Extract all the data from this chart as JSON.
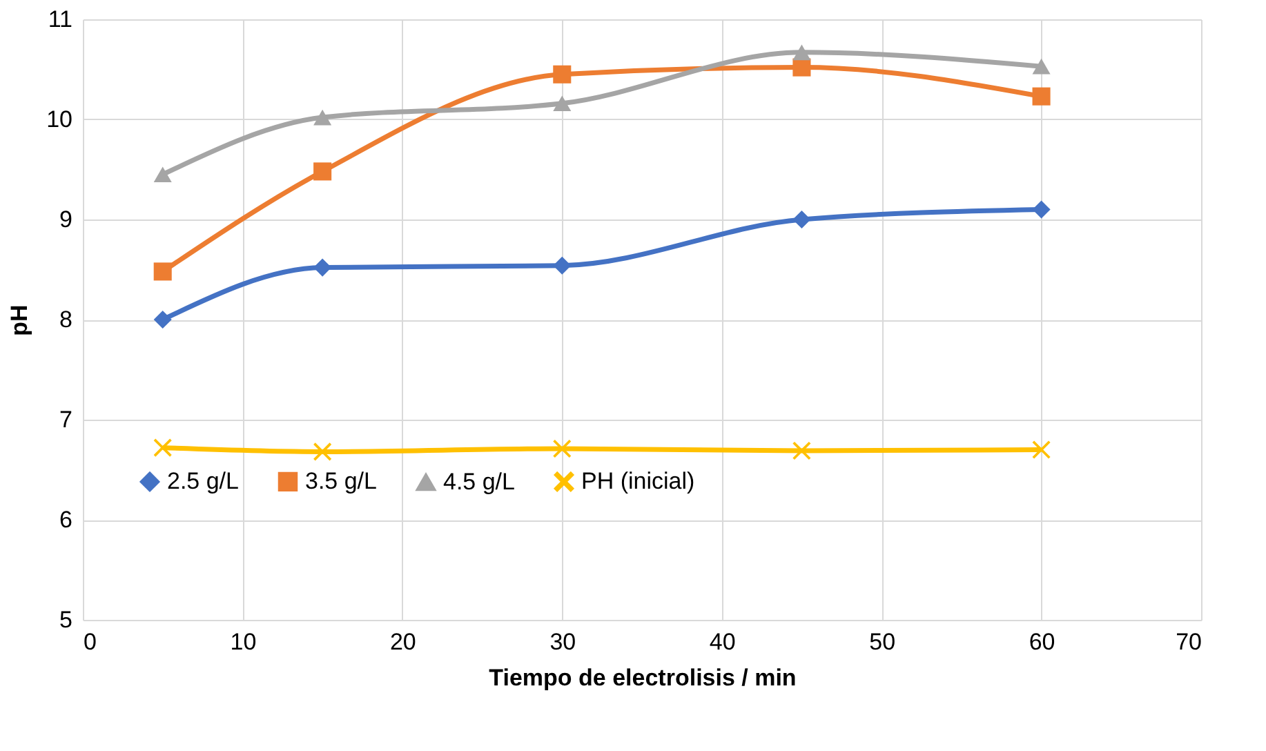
{
  "chart_data": {
    "type": "line",
    "xlabel": "Tiempo de electrolisis / min",
    "ylabel": "pH",
    "x": [
      5,
      15,
      30,
      45,
      60
    ],
    "series": [
      {
        "name": "2.5 g/L",
        "color": "#4472c4",
        "marker": "diamond",
        "values": [
          8.0,
          8.52,
          8.54,
          9.0,
          9.1
        ]
      },
      {
        "name": "3.5 g/L",
        "color": "#ed7d31",
        "marker": "square",
        "values": [
          8.48,
          9.48,
          10.45,
          10.52,
          10.23
        ]
      },
      {
        "name": "4.5 g/L",
        "color": "#a5a5a5",
        "marker": "triangle",
        "values": [
          9.45,
          10.02,
          10.16,
          10.67,
          10.53
        ]
      },
      {
        "name": "PH (inicial)",
        "color": "#ffc000",
        "marker": "cross",
        "values": [
          6.72,
          6.68,
          6.71,
          6.69,
          6.7
        ]
      }
    ],
    "xlim": [
      0,
      70
    ],
    "xticks": [
      0,
      10,
      20,
      30,
      40,
      50,
      60,
      70
    ],
    "ylim": [
      5,
      11
    ],
    "yticks": [
      5,
      6,
      7,
      8,
      9,
      10,
      11
    ],
    "grid": true,
    "legend": "bottom"
  }
}
